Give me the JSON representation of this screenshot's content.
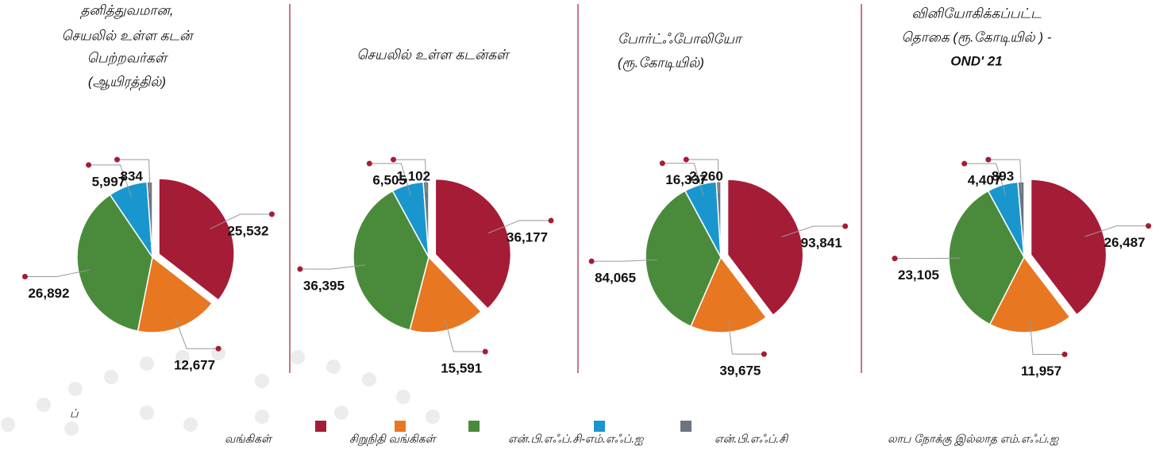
{
  "legend": {
    "labels": [
      "வங்கிகள்",
      "சிறுநிதி வங்கிகள்",
      "என்.பி.எஃப்.சி-எம்.எஃப்.ஐ",
      "என்.பி.எஃப்.சி",
      "லாப நோக்கு இல்லாத எம்.எஃப்.ஐ"
    ],
    "colors": [
      "#a51c36",
      "#e87722",
      "#4a8b3b",
      "#1a96cf",
      "#6b7580"
    ]
  },
  "legend_fragment": "ப்",
  "chart_data": [
    {
      "type": "pie",
      "title": [
        "தனித்துவமான,",
        "செயலில் உள்ள கடன்",
        "பெற்றவர்கள்",
        "(ஆயிரத்தில்)"
      ],
      "values": [
        25532,
        12677,
        26892,
        5997,
        834
      ],
      "value_labels": [
        "25,532",
        "12,677",
        "26,892",
        "5,997",
        "834"
      ]
    },
    {
      "type": "pie",
      "title": [
        "செயலில் உள்ள கடன்கள்"
      ],
      "values": [
        36177,
        15591,
        36395,
        6505,
        1102
      ],
      "value_labels": [
        "36,177",
        "15,591",
        "36,395",
        "6,505",
        "1,102"
      ]
    },
    {
      "type": "pie",
      "title": [
        "போர்ட்ஃபோலியோ",
        "(ரூ.கோடியில்)"
      ],
      "values": [
        93841,
        39675,
        84065,
        16337,
        2260
      ],
      "value_labels": [
        "93,841",
        "39,675",
        "84,065",
        "16,337",
        "2,260"
      ]
    },
    {
      "type": "pie",
      "title": [
        "வினியோகிக்கப்பட்ட",
        "தொகை (ரூ.கோடியில் ) -",
        "OND' 21"
      ],
      "values": [
        26487,
        11957,
        23105,
        4407,
        893
      ],
      "value_labels": [
        "26,487",
        "11,957",
        "23,105",
        "4,407",
        "893"
      ]
    }
  ]
}
